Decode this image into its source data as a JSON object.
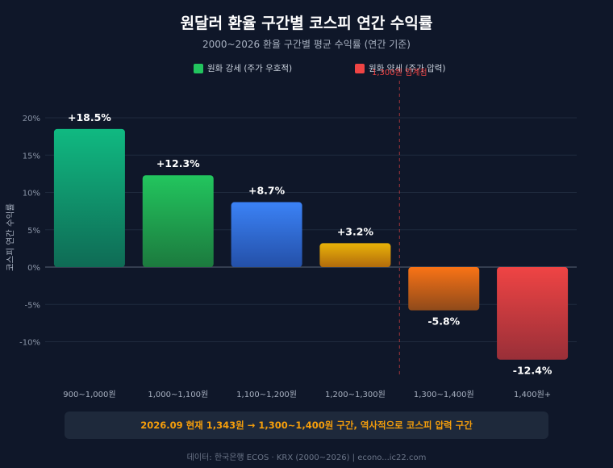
{
  "header": {
    "title": "원달러 환율 구간별 코스피 연간 수익률",
    "subtitle": "2000~2026 환율 구간별 평균 수익률 (연간 기준)"
  },
  "legend": [
    {
      "label": "원화 강세 (주가 우호적)",
      "color": "#22c55e"
    },
    {
      "label": "원화 약세 (주가 압력)",
      "color": "#ef4444"
    }
  ],
  "chart_data": {
    "type": "bar",
    "title": "원달러 환율 구간별 코스피 연간 수익률",
    "subtitle": "2000~2026 환율 구간별 평균 수익률 (연간 기준)",
    "ylabel": "코스피 연간 수익률",
    "xlabel": "",
    "categories": [
      "900~1,000원",
      "1,000~1,100원",
      "1,100~1,200원",
      "1,200~1,300원",
      "1,300~1,400원",
      "1,400원+"
    ],
    "values": [
      18.5,
      12.3,
      8.7,
      3.2,
      -5.8,
      -12.4
    ],
    "value_labels": [
      "+18.5%",
      "+12.3%",
      "+8.7%",
      "+3.2%",
      "-5.8%",
      "-12.4%"
    ],
    "ylim": [
      -14,
      20
    ],
    "yticks": [
      20,
      15,
      10,
      5,
      0,
      -5,
      -10
    ],
    "ytick_labels": [
      "20%",
      "15%",
      "10%",
      "5%",
      "0%",
      "-5%",
      "-10%"
    ],
    "bar_colors": [
      [
        "#10b981",
        "#0f6b55"
      ],
      [
        "#22c55e",
        "#1c7a3e"
      ],
      [
        "#3b82f6",
        "#2450a8"
      ],
      [
        "#eab308",
        "#b16b0c"
      ],
      [
        "#f97316",
        "#8f4a1a"
      ],
      [
        "#ef4444",
        "#992f38"
      ]
    ],
    "grid": true,
    "legend_position": "top",
    "threshold": {
      "after_index": 3,
      "label": "1,300원 임계점",
      "color": "#ef4444"
    }
  },
  "callout": {
    "text": "2026.09 현재 1,343원 → 1,300~1,400원 구간, 역사적으로 코스피 압력 구간"
  },
  "source": {
    "text": "데이터: 한국은행 ECOS · KRX (2000~2026) | econo...ic22.com"
  }
}
